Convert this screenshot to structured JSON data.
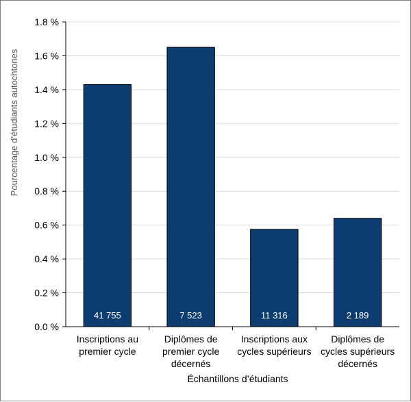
{
  "chart_data": {
    "type": "bar",
    "categories": [
      [
        "Inscriptions au",
        "premier cycle"
      ],
      [
        "Diplômes de",
        "premier cycle",
        "décernés"
      ],
      [
        "Inscriptions aux",
        "cycles supérieurs"
      ],
      [
        "Diplômes de",
        "cycles supérieurs",
        "décernés"
      ]
    ],
    "values": [
      1.43,
      1.65,
      0.575,
      0.64
    ],
    "data_labels": [
      "41 755",
      "7 523",
      "11 316",
      "2 189"
    ],
    "xlabel": "Échantillons d’étudiants",
    "ylabel": "Pourcentage d’étudiants autochtones",
    "ylim": [
      0,
      1.8
    ],
    "yticks": [
      "0.0 %",
      "0.2 %",
      "0.4 %",
      "0.6 %",
      "0.8 %",
      "1.0 %",
      "1.2 %",
      "1.4 %",
      "1.6 %",
      "1.8 %"
    ],
    "bar_color": "#0d3d70",
    "grid": true
  }
}
